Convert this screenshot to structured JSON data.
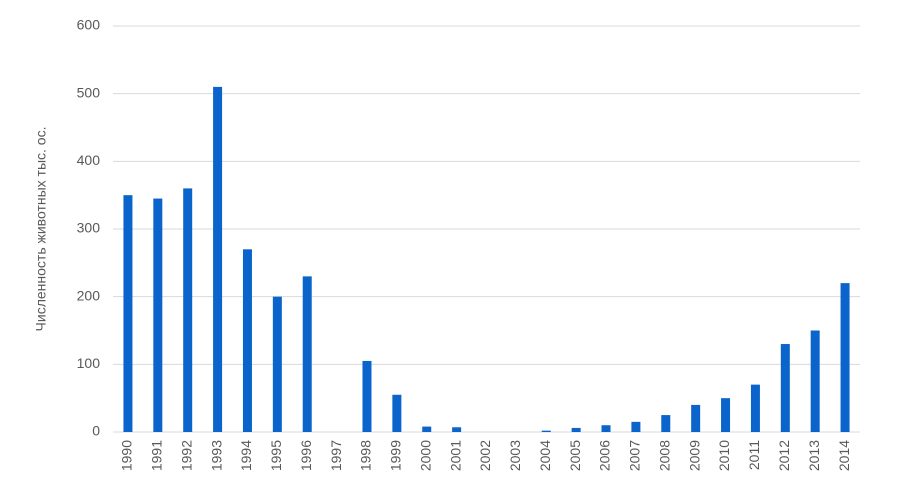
{
  "chart_data": {
    "type": "bar",
    "y_label": "Численность животных тыс. ос.",
    "categories": [
      "1990",
      "1991",
      "1992",
      "1993",
      "1994",
      "1995",
      "1996",
      "1997",
      "1998",
      "1999",
      "2000",
      "2001",
      "2002",
      "2003",
      "2004",
      "2005",
      "2006",
      "2007",
      "2008",
      "2009",
      "2010",
      "2011",
      "2012",
      "2013",
      "2014"
    ],
    "values": [
      350,
      345,
      360,
      510,
      270,
      200,
      230,
      0,
      105,
      55,
      8,
      7,
      0,
      0,
      2,
      6,
      10,
      15,
      25,
      40,
      50,
      70,
      130,
      150,
      220
    ],
    "color": "#0a64cc",
    "ylim": [
      0,
      600
    ],
    "yticks": [
      0,
      100,
      200,
      300,
      400,
      500,
      600
    ],
    "grid": true
  }
}
